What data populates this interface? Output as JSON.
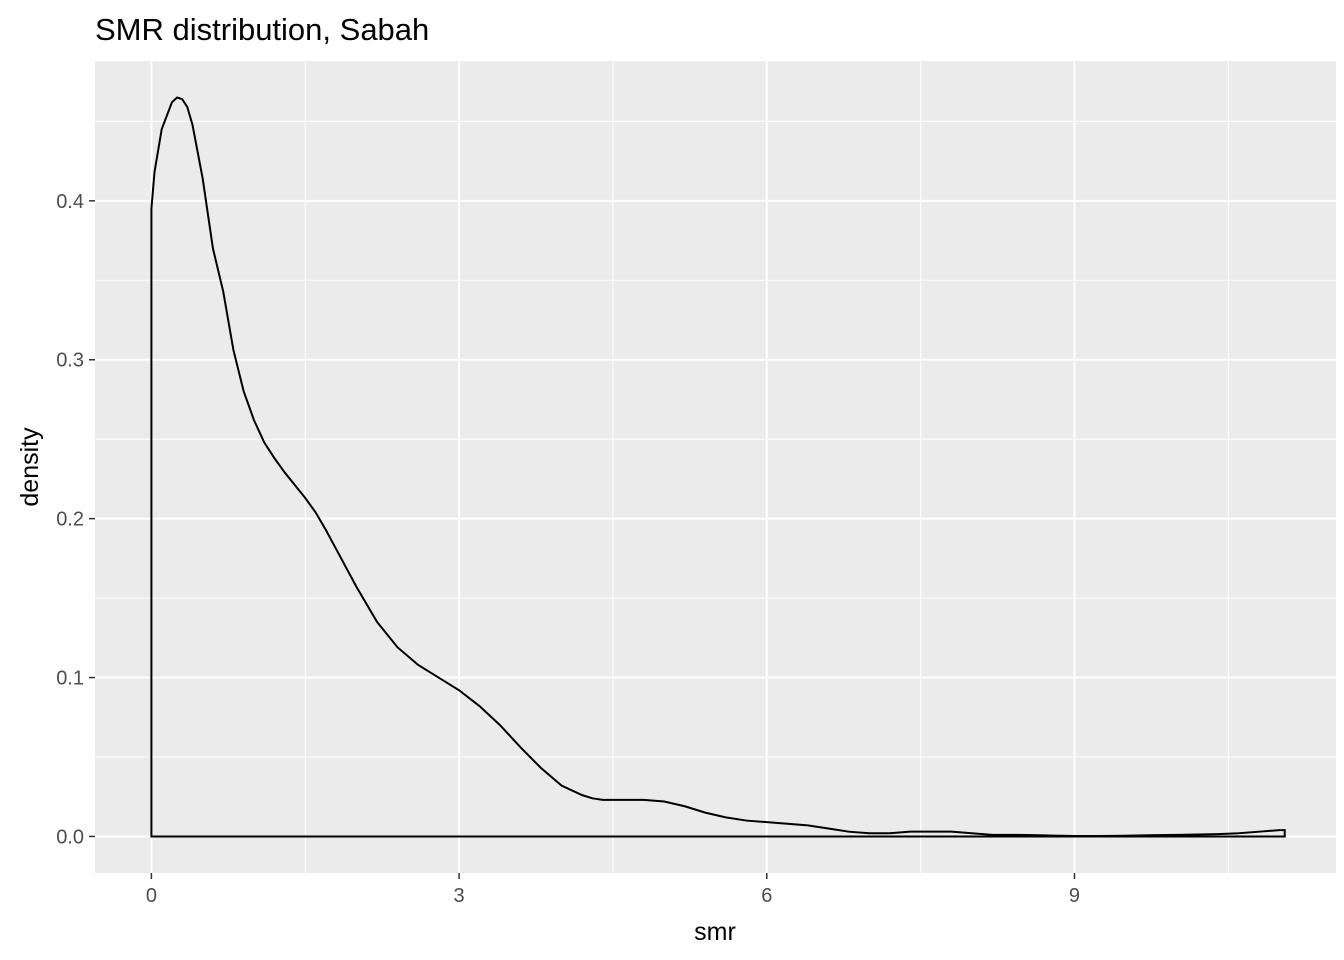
{
  "chart_data": {
    "type": "area",
    "title": "SMR distribution, Sabah",
    "xlabel": "smr",
    "ylabel": "density",
    "xlim": [
      -0.55,
      11.55
    ],
    "ylim": [
      -0.023,
      0.488
    ],
    "x_ticks": [
      0,
      3,
      6,
      9
    ],
    "x_tick_labels": [
      "0",
      "3",
      "6",
      "9"
    ],
    "y_ticks": [
      0.0,
      0.1,
      0.2,
      0.3,
      0.4
    ],
    "y_tick_labels": [
      "0.0",
      "0.1",
      "0.2",
      "0.3",
      "0.4"
    ],
    "grid": true,
    "panel_background": "#ebebeb",
    "grid_color": "#ffffff",
    "line_color": "#000000",
    "fill": "none",
    "series": [
      {
        "x": [
          0.0,
          0.03,
          0.1,
          0.2,
          0.25,
          0.3,
          0.35,
          0.4,
          0.5,
          0.6,
          0.7,
          0.8,
          0.9,
          1.0,
          1.1,
          1.2,
          1.3,
          1.4,
          1.5,
          1.6,
          1.7,
          1.8,
          2.0,
          2.2,
          2.4,
          2.6,
          2.8,
          3.0,
          3.2,
          3.4,
          3.6,
          3.8,
          4.0,
          4.2,
          4.3,
          4.4,
          4.6,
          4.8,
          5.0,
          5.2,
          5.4,
          5.6,
          5.8,
          6.0,
          6.2,
          6.4,
          6.6,
          6.8,
          7.0,
          7.2,
          7.4,
          7.6,
          7.8,
          8.0,
          8.2,
          8.4,
          8.6,
          8.8,
          9.0,
          9.2,
          9.4,
          9.6,
          9.8,
          10.0,
          10.2,
          10.4,
          10.6,
          10.8,
          11.0,
          11.05
        ],
        "y": [
          0.395,
          0.418,
          0.445,
          0.462,
          0.465,
          0.464,
          0.459,
          0.448,
          0.414,
          0.37,
          0.343,
          0.306,
          0.28,
          0.262,
          0.248,
          0.238,
          0.229,
          0.221,
          0.213,
          0.204,
          0.193,
          0.181,
          0.157,
          0.135,
          0.119,
          0.108,
          0.1,
          0.092,
          0.082,
          0.07,
          0.056,
          0.043,
          0.032,
          0.026,
          0.024,
          0.023,
          0.023,
          0.023,
          0.022,
          0.019,
          0.015,
          0.012,
          0.01,
          0.009,
          0.008,
          0.007,
          0.005,
          0.003,
          0.002,
          0.002,
          0.003,
          0.003,
          0.003,
          0.002,
          0.001,
          0.001,
          0.0008,
          0.0005,
          0.0003,
          0.0003,
          0.0004,
          0.0006,
          0.0008,
          0.001,
          0.0012,
          0.0015,
          0.002,
          0.003,
          0.004,
          0.004
        ]
      }
    ]
  }
}
